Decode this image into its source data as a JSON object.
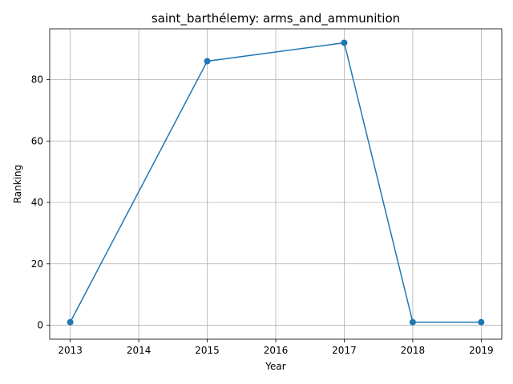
{
  "chart_data": {
    "type": "line",
    "title": "saint_barthélemy: arms_and_ammunition",
    "xlabel": "Year",
    "ylabel": "Ranking",
    "x_ticks": [
      "2013",
      "2014",
      "2015",
      "2016",
      "2017",
      "2018",
      "2019"
    ],
    "y_ticks": [
      "0",
      "20",
      "40",
      "60",
      "80"
    ],
    "xlim": [
      2012.7,
      2019.3
    ],
    "ylim": [
      -4.55,
      96.55
    ],
    "grid": true,
    "series": [
      {
        "color": "#1f77b4",
        "marker": "circle",
        "x": [
          2013,
          2015,
          2017,
          2018,
          2019
        ],
        "y": [
          1,
          86,
          92,
          1,
          1
        ]
      }
    ]
  }
}
